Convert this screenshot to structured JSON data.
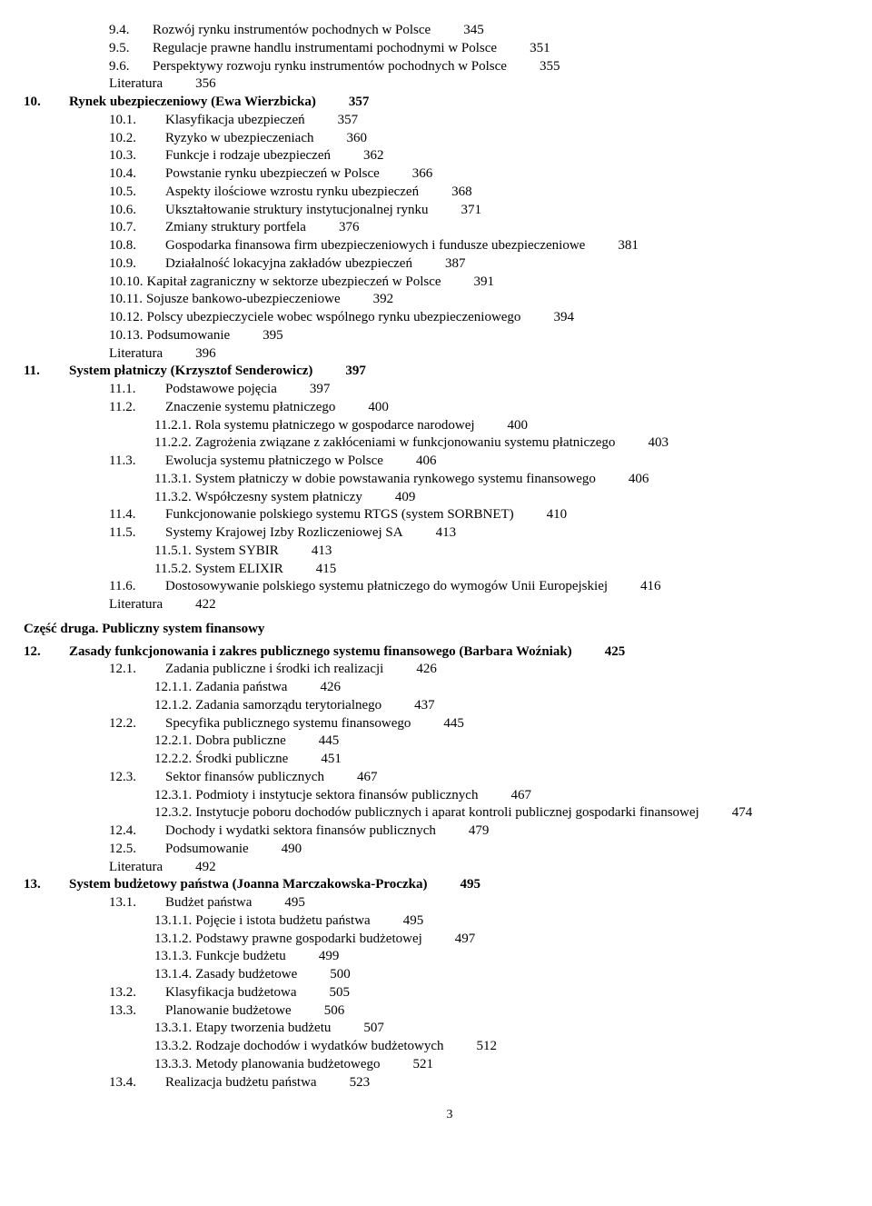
{
  "lines": [
    {
      "indent": 1,
      "num": "9.4.",
      "label": "Rozwój rynku instrumentów pochodnych w Polsce",
      "page": "345"
    },
    {
      "indent": 1,
      "num": "9.5.",
      "label": "Regulacje prawne handlu instrumentami pochodnymi w Polsce",
      "page": "351"
    },
    {
      "indent": 1,
      "num": "9.6.",
      "label": "Perspektywy rozwoju rynku instrumentów pochodnych w Polsce",
      "page": "355"
    },
    {
      "indent": 1,
      "num": "",
      "label": "Literatura",
      "page": "356"
    },
    {
      "chapter": true,
      "num": "10.",
      "label": "Rynek ubezpieczeniowy (Ewa Wierzbicka)",
      "page": "357",
      "bold": true
    },
    {
      "indent": 1,
      "num": "10.1.",
      "label": "Klasyfikacja ubezpieczeń",
      "page": "357",
      "wide": true
    },
    {
      "indent": 1,
      "num": "10.2.",
      "label": "Ryzyko w ubezpieczeniach",
      "page": "360",
      "wide": true
    },
    {
      "indent": 1,
      "num": "10.3.",
      "label": "Funkcje i rodzaje ubezpieczeń",
      "page": "362",
      "wide": true
    },
    {
      "indent": 1,
      "num": "10.4.",
      "label": "Powstanie rynku ubezpieczeń w Polsce",
      "page": "366",
      "wide": true
    },
    {
      "indent": 1,
      "num": "10.5.",
      "label": "Aspekty ilościowe wzrostu rynku ubezpieczeń",
      "page": "368",
      "wide": true
    },
    {
      "indent": 1,
      "num": "10.6.",
      "label": "Ukształtowanie struktury instytucjonalnej rynku",
      "page": "371",
      "wide": true
    },
    {
      "indent": 1,
      "num": "10.7.",
      "label": "Zmiany struktury portfela",
      "page": "376",
      "wide": true
    },
    {
      "indent": 1,
      "num": "10.8.",
      "label": "Gospodarka finansowa firm ubezpieczeniowych i fundusze ubezpieczeniowe",
      "page": "381",
      "wide": true
    },
    {
      "indent": 1,
      "num": "10.9.",
      "label": "Działalność lokacyjna zakładów ubezpieczeń",
      "page": "387",
      "wide": true
    },
    {
      "indent": 1,
      "num": "10.10.",
      "label": "Kapitał zagraniczny w sektorze ubezpieczeń w Polsce",
      "page": "391",
      "wide": true,
      "tight": true
    },
    {
      "indent": 1,
      "num": "10.11.",
      "label": "Sojusze bankowo-ubezpieczeniowe",
      "page": "392",
      "wide": true,
      "tight": true
    },
    {
      "indent": 1,
      "num": "10.12.",
      "label": "Polscy ubezpieczyciele wobec wspólnego rynku ubezpieczeniowego",
      "page": "394",
      "wide": true,
      "tight": true
    },
    {
      "indent": 1,
      "num": "10.13.",
      "label": "Podsumowanie",
      "page": "395",
      "wide": true,
      "tight": true
    },
    {
      "indent": 1,
      "num": "",
      "label": "Literatura",
      "page": "396"
    },
    {
      "chapter": true,
      "num": "11.",
      "label": "System płatniczy (Krzysztof Senderowicz)",
      "page": "397",
      "bold": true
    },
    {
      "indent": 1,
      "num": "11.1.",
      "label": "Podstawowe pojęcia",
      "page": "397",
      "wide": true
    },
    {
      "indent": 1,
      "num": "11.2.",
      "label": "Znaczenie systemu płatniczego",
      "page": "400",
      "wide": true
    },
    {
      "indent": 2,
      "num": "11.2.1.",
      "label": "Rola systemu płatniczego w gospodarce narodowej",
      "page": "400",
      "wide": true,
      "tight": true
    },
    {
      "indent": 2,
      "num": "11.2.2.",
      "label": "Zagrożenia związane z zakłóceniami w funkcjonowaniu systemu płatniczego",
      "page": "403",
      "wide": true,
      "tight": true
    },
    {
      "indent": 1,
      "num": "11.3.",
      "label": "Ewolucja systemu płatniczego w Polsce",
      "page": "406",
      "wide": true
    },
    {
      "indent": 2,
      "num": "11.3.1.",
      "label": "System płatniczy w dobie powstawania rynkowego systemu finansowego",
      "page": "406",
      "wide": true,
      "tight": true
    },
    {
      "indent": 2,
      "num": "11.3.2.",
      "label": "Współczesny system płatniczy",
      "page": "409",
      "wide": true,
      "tight": true
    },
    {
      "indent": 1,
      "num": "11.4.",
      "label": "Funkcjonowanie polskiego systemu RTGS (system SORBNET)",
      "page": "410",
      "wide": true
    },
    {
      "indent": 1,
      "num": "11.5.",
      "label": "Systemy Krajowej Izby Rozliczeniowej SA",
      "page": "413",
      "wide": true
    },
    {
      "indent": 2,
      "num": "11.5.1.",
      "label": "System SYBIR",
      "page": "413",
      "wide": true,
      "tight": true
    },
    {
      "indent": 2,
      "num": "11.5.2.",
      "label": "System ELIXIR",
      "page": "415",
      "wide": true,
      "tight": true
    },
    {
      "indent": 1,
      "num": "11.6.",
      "label": "Dostosowywanie polskiego systemu płatniczego do wymogów Unii Europejskiej",
      "page": "416",
      "wide": true
    },
    {
      "indent": 1,
      "num": "",
      "label": "Literatura",
      "page": "422"
    },
    {
      "part": true,
      "label": "Część druga. Publiczny system finansowy"
    },
    {
      "chapter": true,
      "num": "12.",
      "label": "Zasady funkcjonowania i zakres publicznego systemu finansowego (Barbara Woźniak)",
      "page": "425",
      "bold": true
    },
    {
      "indent": 1,
      "num": "12.1.",
      "label": "Zadania publiczne i środki ich realizacji",
      "page": "426",
      "wide": true
    },
    {
      "indent": 2,
      "num": "12.1.1.",
      "label": "Zadania państwa",
      "page": "426",
      "wide": true,
      "tight": true
    },
    {
      "indent": 2,
      "num": "12.1.2.",
      "label": "Zadania samorządu terytorialnego",
      "page": "437",
      "wide": true,
      "tight": true
    },
    {
      "indent": 1,
      "num": "12.2.",
      "label": "Specyfika publicznego systemu finansowego",
      "page": "445",
      "wide": true
    },
    {
      "indent": 2,
      "num": "12.2.1.",
      "label": "Dobra publiczne",
      "page": "445",
      "wide": true,
      "tight": true
    },
    {
      "indent": 2,
      "num": "12.2.2.",
      "label": "Środki publiczne",
      "page": "451",
      "wide": true,
      "tight": true
    },
    {
      "indent": 1,
      "num": "12.3.",
      "label": "Sektor finansów publicznych",
      "page": "467",
      "wide": true
    },
    {
      "indent": 2,
      "num": "12.3.1.",
      "label": "Podmioty i instytucje sektora finansów publicznych",
      "page": "467",
      "wide": true,
      "tight": true
    },
    {
      "indent": 2,
      "num": "12.3.2.",
      "label": "Instytucje poboru dochodów publicznych i aparat kontroli publicznej gospodarki finansowej",
      "page": "474",
      "wide": true,
      "tight": true
    },
    {
      "indent": 1,
      "num": "12.4.",
      "label": "Dochody i wydatki sektora finansów publicznych",
      "page": "479",
      "wide": true
    },
    {
      "indent": 1,
      "num": "12.5.",
      "label": "Podsumowanie",
      "page": "490",
      "wide": true
    },
    {
      "indent": 1,
      "num": "",
      "label": "Literatura",
      "page": "492"
    },
    {
      "chapter": true,
      "num": "13.",
      "label": "System budżetowy państwa (Joanna Marczakowska-Proczka)",
      "page": "495",
      "bold": true
    },
    {
      "indent": 1,
      "num": "13.1.",
      "label": "Budżet państwa",
      "page": "495",
      "wide": true
    },
    {
      "indent": 2,
      "num": "13.1.1.",
      "label": "Pojęcie i istota budżetu państwa",
      "page": "495",
      "wide": true,
      "tight": true
    },
    {
      "indent": 2,
      "num": "13.1.2.",
      "label": "Podstawy prawne gospodarki budżetowej",
      "page": "497",
      "wide": true,
      "tight": true
    },
    {
      "indent": 2,
      "num": "13.1.3.",
      "label": "Funkcje budżetu",
      "page": "499",
      "wide": true,
      "tight": true
    },
    {
      "indent": 2,
      "num": "13.1.4.",
      "label": "Zasady budżetowe",
      "page": "500",
      "wide": true,
      "tight": true
    },
    {
      "indent": 1,
      "num": "13.2.",
      "label": "Klasyfikacja budżetowa",
      "page": "505",
      "wide": true
    },
    {
      "indent": 1,
      "num": "13.3.",
      "label": "Planowanie budżetowe",
      "page": "506",
      "wide": true
    },
    {
      "indent": 2,
      "num": "13.3.1.",
      "label": "Etapy tworzenia budżetu",
      "page": "507",
      "wide": true,
      "tight": true
    },
    {
      "indent": 2,
      "num": "13.3.2.",
      "label": "Rodzaje dochodów i wydatków budżetowych",
      "page": "512",
      "wide": true,
      "tight": true
    },
    {
      "indent": 2,
      "num": "13.3.3.",
      "label": "Metody planowania budżetowego",
      "page": "521",
      "wide": true,
      "tight": true
    },
    {
      "indent": 1,
      "num": "13.4.",
      "label": "Realizacja budżetu państwa",
      "page": "523",
      "wide": true
    }
  ],
  "footer": "3"
}
